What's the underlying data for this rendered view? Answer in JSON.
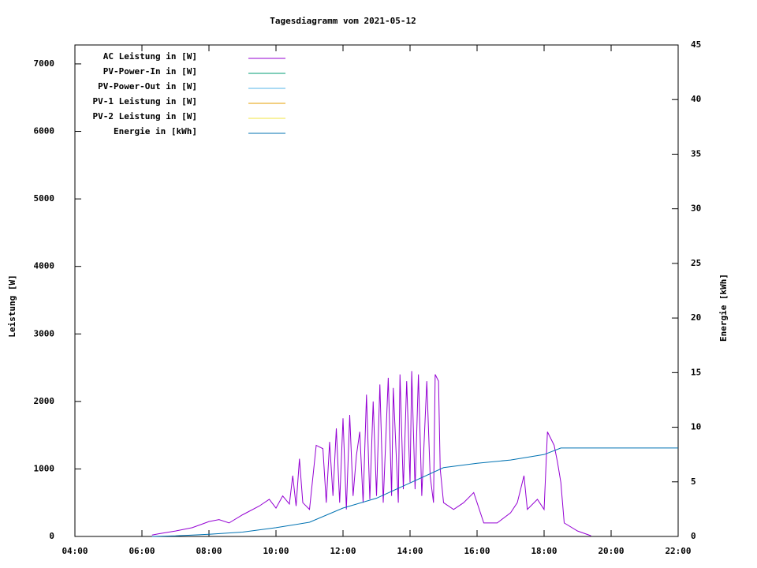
{
  "chart_data": {
    "type": "line",
    "title": "Tagesdiagramm vom 2021-05-12",
    "ylabel": "Leistung [W]",
    "y2label": "Energie [kWh]",
    "xlim": [
      4,
      22
    ],
    "xticks": [
      {
        "value": 4,
        "label": "04:00"
      },
      {
        "value": 6,
        "label": "06:00"
      },
      {
        "value": 8,
        "label": "08:00"
      },
      {
        "value": 10,
        "label": "10:00"
      },
      {
        "value": 12,
        "label": "12:00"
      },
      {
        "value": 14,
        "label": "14:00"
      },
      {
        "value": 16,
        "label": "16:00"
      },
      {
        "value": 18,
        "label": "18:00"
      },
      {
        "value": 20,
        "label": "20:00"
      },
      {
        "value": 22,
        "label": "22:00"
      }
    ],
    "ylim": [
      0,
      7280
    ],
    "yticks": [
      0,
      1000,
      2000,
      3000,
      4000,
      5000,
      6000,
      7000
    ],
    "y2lim": [
      0,
      45
    ],
    "y2ticks": [
      0,
      5,
      10,
      15,
      20,
      25,
      30,
      35,
      40,
      45
    ],
    "legend": "top-left",
    "series": [
      {
        "name": "AC Leistung in [W]",
        "color": "#9400d3",
        "x": [
          6.3,
          6.5,
          7,
          7.5,
          8,
          8.3,
          8.6,
          9,
          9.5,
          9.8,
          10,
          10.2,
          10.4,
          10.5,
          10.6,
          10.7,
          10.8,
          11,
          11.2,
          11.4,
          11.5,
          11.6,
          11.7,
          11.8,
          11.9,
          12,
          12.1,
          12.2,
          12.3,
          12.4,
          12.5,
          12.6,
          12.7,
          12.8,
          12.9,
          13,
          13.1,
          13.2,
          13.35,
          13.45,
          13.5,
          13.65,
          13.7,
          13.8,
          13.9,
          14,
          14.05,
          14.15,
          14.25,
          14.35,
          14.5,
          14.6,
          14.7,
          14.75,
          14.85,
          14.9,
          15,
          15.3,
          15.6,
          15.9,
          16.2,
          16.6,
          17,
          17.2,
          17.4,
          17.5,
          17.8,
          18,
          18.1,
          18.3,
          18.4,
          18.5,
          18.6,
          19,
          19.4
        ],
        "values": [
          20,
          40,
          80,
          130,
          220,
          250,
          200,
          320,
          450,
          550,
          420,
          600,
          480,
          900,
          450,
          1150,
          500,
          400,
          1350,
          1300,
          500,
          1400,
          600,
          1600,
          500,
          1750,
          400,
          1800,
          600,
          1200,
          1550,
          500,
          2100,
          550,
          2000,
          600,
          2250,
          500,
          2350,
          600,
          2200,
          500,
          2400,
          700,
          2300,
          800,
          2450,
          700,
          2400,
          600,
          2300,
          900,
          500,
          2400,
          2300,
          1000,
          500,
          400,
          500,
          650,
          200,
          200,
          350,
          500,
          900,
          400,
          550,
          400,
          1550,
          1350,
          1100,
          800,
          200,
          80,
          10
        ]
      },
      {
        "name": "PV-Power-In in [W]",
        "color": "#009e73",
        "x": [],
        "values": []
      },
      {
        "name": "PV-Power-Out in [W]",
        "color": "#56b4e9",
        "x": [],
        "values": []
      },
      {
        "name": "PV-1 Leistung in [W]",
        "color": "#e69f00",
        "x": [],
        "values": []
      },
      {
        "name": "PV-2 Leistung in [W]",
        "color": "#f0e442",
        "x": [],
        "values": []
      },
      {
        "name": "Energie in [kWh]",
        "color": "#0072b2",
        "axis": "y2",
        "x": [
          6.3,
          7,
          8,
          9,
          10,
          11,
          12,
          13,
          14,
          15,
          16,
          17,
          18,
          18.5,
          19,
          20,
          22
        ],
        "values": [
          0,
          0.05,
          0.2,
          0.4,
          0.8,
          1.3,
          2.6,
          3.5,
          4.9,
          6.3,
          6.7,
          7.0,
          7.5,
          8.1,
          8.1,
          8.1,
          8.1
        ]
      }
    ]
  }
}
